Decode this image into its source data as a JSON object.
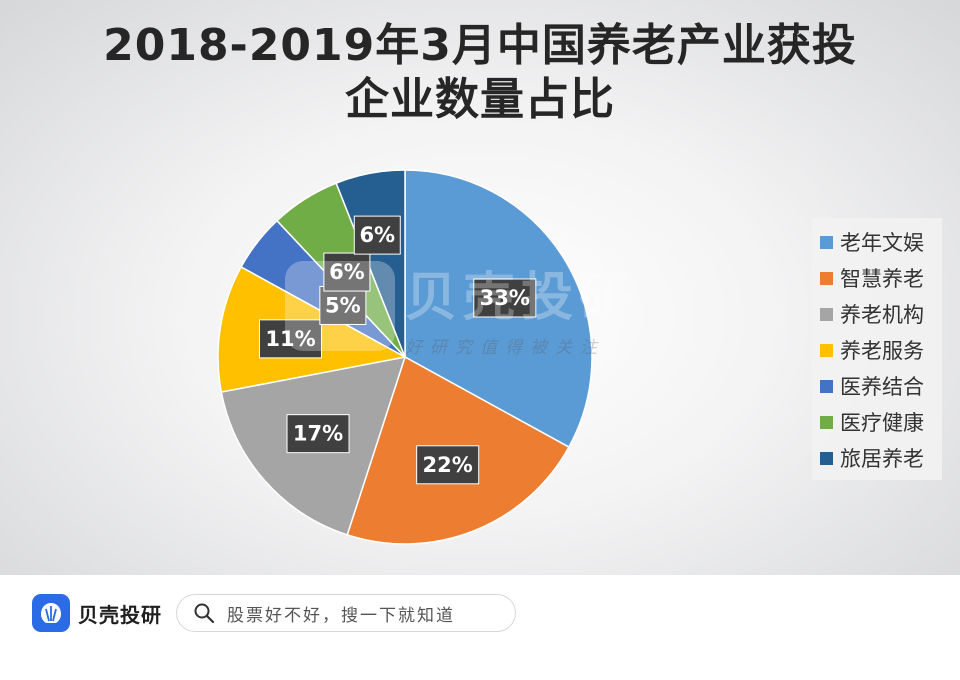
{
  "title": {
    "line1": "2018-2019年3月中国养老产业获投",
    "line2": "企业数量占比"
  },
  "chart_data": {
    "type": "pie",
    "title": "2018-2019年3月中国养老产业获投企业数量占比",
    "start_angle_deg": 0,
    "direction": "clockwise",
    "slices": [
      {
        "name": "老年文娱",
        "value": 33,
        "label": "33%",
        "color": "#5b9bd5"
      },
      {
        "name": "智慧养老",
        "value": 22,
        "label": "22%",
        "color": "#ed7d31"
      },
      {
        "name": "养老机构",
        "value": 17,
        "label": "17%",
        "color": "#a5a5a5"
      },
      {
        "name": "养老服务",
        "value": 11,
        "label": "11%",
        "color": "#ffc000"
      },
      {
        "name": "医养结合",
        "value": 5,
        "label": "5%",
        "color": "#4472c4"
      },
      {
        "name": "医疗健康",
        "value": 6,
        "label": "6%",
        "color": "#70ad47"
      },
      {
        "name": "旅居养老",
        "value": 6,
        "label": "6%",
        "color": "#255e91"
      }
    ],
    "legend_position": "right"
  },
  "watermark": {
    "brand": "贝壳投研",
    "slogan": "好研究值得被关注"
  },
  "footer": {
    "brand_name": "贝壳投研",
    "search_placeholder": "股票好不好，搜一下就知道"
  },
  "icons": {
    "brand_logo": "shell-logo-icon",
    "search": "search-icon"
  }
}
